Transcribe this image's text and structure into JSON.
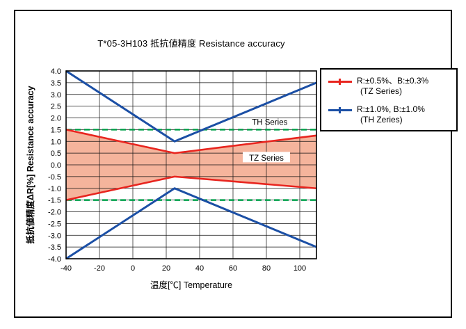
{
  "figure": {
    "title": "T*05-3H103 抵抗値精度 Resistance accuracy"
  },
  "chart_data": {
    "type": "line",
    "title": "T*05-3H103 抵抗値精度 Resistance accuracy",
    "xlabel": "温度[℃]  Temperature",
    "ylabel": "抵抗値精度ΔR[%] Resistance accuracy",
    "xlim": [
      -40,
      110
    ],
    "ylim": [
      -4.0,
      4.0
    ],
    "x_ticks": [
      -40,
      -20,
      0,
      20,
      40,
      60,
      80,
      100
    ],
    "y_ticks": [
      4.0,
      3.5,
      3.0,
      2.5,
      2.0,
      1.5,
      1.0,
      0.5,
      0.0,
      -0.5,
      -1.0,
      -1.5,
      -2.0,
      -2.5,
      -3.0,
      -3.5,
      -4.0
    ],
    "grid": true,
    "legend_position": "right",
    "series": [
      {
        "name": "TH-upper",
        "color": "#1b4fa5",
        "width": 3,
        "x": [
          -40,
          25,
          110
        ],
        "y": [
          4.0,
          1.0,
          3.5
        ]
      },
      {
        "name": "TH-lower",
        "color": "#1b4fa5",
        "width": 3,
        "x": [
          -40,
          25,
          110
        ],
        "y": [
          -4.0,
          -1.0,
          -3.5
        ]
      },
      {
        "name": "TZ-upper",
        "color": "#e8251f",
        "width": 2.6,
        "x": [
          -40,
          25,
          110
        ],
        "y": [
          1.5,
          0.5,
          1.25
        ]
      },
      {
        "name": "TZ-lower",
        "color": "#e8251f",
        "width": 2.6,
        "x": [
          -40,
          25,
          110
        ],
        "y": [
          -1.5,
          -0.5,
          -1.0
        ]
      }
    ],
    "band": {
      "fill": "#f5b49c",
      "x": [
        -40,
        25,
        110
      ],
      "upper": [
        1.5,
        0.5,
        1.25
      ],
      "lower": [
        -1.5,
        -0.5,
        -1.0
      ]
    },
    "limit_lines": [
      {
        "y": 1.5,
        "color": "#00a14b",
        "dash": "8 5",
        "width": 2.4
      },
      {
        "y": -1.5,
        "color": "#00a14b",
        "dash": "8 5",
        "width": 2.4
      }
    ],
    "annotations": [
      {
        "text": "TH Series",
        "x": 82,
        "y": 1.82,
        "bg": false
      },
      {
        "text": "TZ Series",
        "x": 80,
        "y": 0.3,
        "bg": true
      }
    ]
  },
  "legend": {
    "items": [
      {
        "line1": "R:±0.5%、B:±0.3%",
        "line2": "(TZ Series)",
        "color": "#e8251f"
      },
      {
        "line1": "R:±1.0%, B:±1.0%",
        "line2": "(TH Zeries)",
        "color": "#1b4fa5"
      }
    ]
  }
}
